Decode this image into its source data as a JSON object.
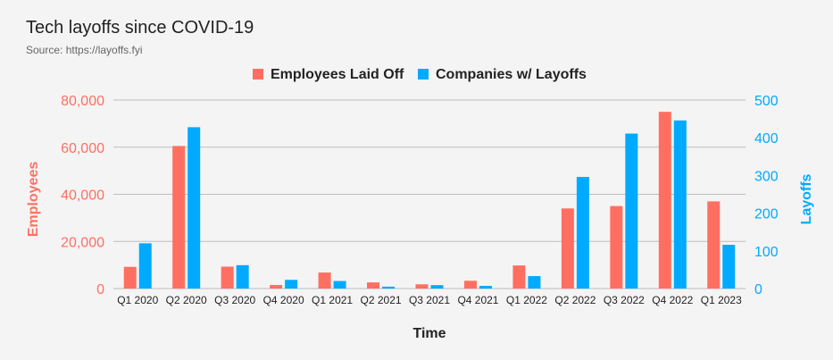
{
  "header": {
    "title": "Tech layoffs since COVID-19",
    "subtitle": "Source: https://layoffs.fyi"
  },
  "colors": {
    "employees": "#ff6f61",
    "companies": "#00aaff",
    "grid": "#bdbdbd",
    "background": "#f4f4f4"
  },
  "chart_data": {
    "type": "bar",
    "title": "Tech layoffs since COVID-19",
    "subtitle": "Source: https://layoffs.fyi",
    "xlabel": "Time",
    "categories": [
      "Q1 2020",
      "Q2 2020",
      "Q3 2020",
      "Q4 2020",
      "Q1 2021",
      "Q2 2021",
      "Q3 2021",
      "Q4 2021",
      "Q1 2022",
      "Q2 2022",
      "Q3 2022",
      "Q4 2022",
      "Q1 2023"
    ],
    "series": [
      {
        "name": "Employees Laid Off",
        "axis": "left",
        "values": [
          9200,
          60500,
          9300,
          1500,
          6800,
          2600,
          1800,
          3300,
          9800,
          34000,
          35000,
          75000,
          37000
        ]
      },
      {
        "name": "Companies w/ Layoffs",
        "axis": "right",
        "values": [
          120,
          428,
          62,
          23,
          20,
          5,
          9,
          7,
          33,
          296,
          411,
          446,
          116
        ]
      }
    ],
    "y_left": {
      "label": "Employees",
      "ylim": [
        0,
        80000
      ],
      "ticks": [
        0,
        20000,
        40000,
        60000,
        80000
      ],
      "tick_labels": [
        "0",
        "20,000",
        "40,000",
        "60,000",
        "80,000"
      ]
    },
    "y_right": {
      "label": "Layoffs",
      "ylim": [
        0,
        500
      ],
      "ticks": [
        0,
        100,
        200,
        300,
        400,
        500
      ],
      "tick_labels": [
        "0",
        "100",
        "200",
        "300",
        "400",
        "500"
      ]
    },
    "grid": true,
    "legend_position": "top-center"
  }
}
